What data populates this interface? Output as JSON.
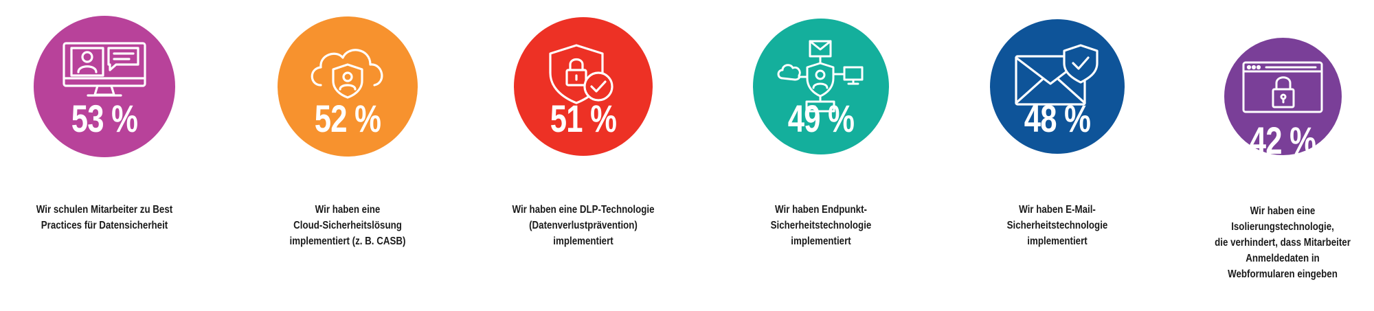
{
  "chart_data": {
    "type": "infographic",
    "unit": "%",
    "items": [
      {
        "value": 53,
        "label_text": "53 %",
        "caption": "Wir schulen Mitarbeiter zu Best\nPractices für Datensicherheit",
        "color": "#B8429A",
        "icon": "monitor-chat-icon"
      },
      {
        "value": 52,
        "label_text": "52 %",
        "caption": "Wir haben eine\nCloud-Sicherheitslösung\nimplementiert (z. B. CASB)",
        "color": "#F7922E",
        "icon": "cloud-shield-icon"
      },
      {
        "value": 51,
        "label_text": "51 %",
        "caption": "Wir haben eine DLP-Technologie\n(Datenverlustprävention)\nimplementiert",
        "color": "#ED3125",
        "icon": "shield-lock-check-icon"
      },
      {
        "value": 49,
        "label_text": "49 %",
        "caption": "Wir haben Endpunkt-\nSicherheitstechnologie\nimplementiert",
        "color": "#14AF9C",
        "icon": "network-endpoint-icon"
      },
      {
        "value": 48,
        "label_text": "48 %",
        "caption": "Wir haben E-Mail-\nSicherheitstechnologie\nimplementiert",
        "color": "#0E5499",
        "icon": "envelope-shield-icon"
      },
      {
        "value": 42,
        "label_text": "42 %",
        "caption": "Wir haben eine\nIsolierungstechnologie,\ndie verhindert, dass Mitarbeiter\nAnmeldedaten in\nWebformularen eingeben",
        "color": "#7A3F98",
        "icon": "browser-lock-icon"
      }
    ]
  }
}
